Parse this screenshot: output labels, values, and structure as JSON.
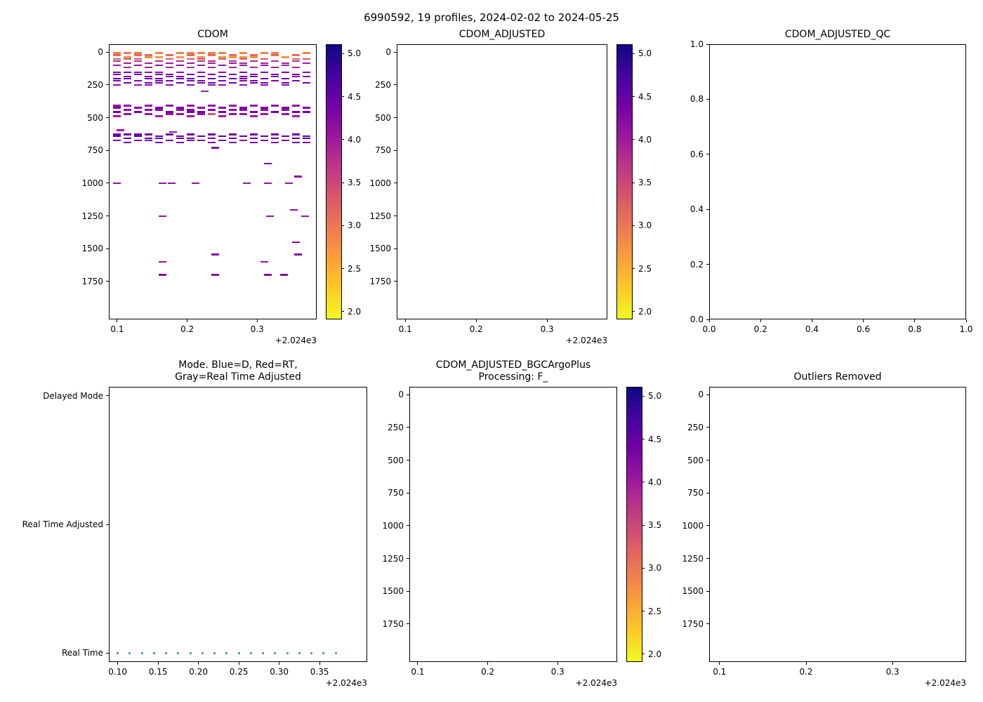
{
  "figure": {
    "suptitle": "6990592, 19 profiles, 2024-02-02 to 2024-05-25",
    "background": "#ffffff"
  },
  "palette": {
    "plasma_stops": [
      "#0d0887",
      "#46039f",
      "#7201a8",
      "#9c179e",
      "#bd3786",
      "#d8576b",
      "#ed7953",
      "#fb9f3a",
      "#fdca26",
      "#f0f921"
    ],
    "mode_dot_color": "#3a87ad",
    "axis_color": "#000000"
  },
  "chart_data": [
    {
      "id": "cdom",
      "type": "scatter",
      "marker_shape": "hline",
      "title": "CDOM",
      "xlim": [
        0.088,
        0.385
      ],
      "ylim": [
        -60,
        2040
      ],
      "xticks": [
        0.1,
        0.2,
        0.3
      ],
      "xtick_labels": [
        "0.1",
        "0.2",
        "0.3"
      ],
      "yticks": [
        0,
        250,
        500,
        750,
        1000,
        1250,
        1500,
        1750
      ],
      "ytick_labels": [
        "0",
        "250",
        "500",
        "750",
        "1000",
        "1250",
        "1500",
        "1750"
      ],
      "x_offset_label": "+2.024e3",
      "colorbar": {
        "vmin": 1.9,
        "vmax": 5.1,
        "ticks": [
          2.0,
          2.5,
          3.0,
          3.5,
          4.0,
          4.5,
          5.0
        ],
        "tick_labels": [
          "2.0",
          "2.5",
          "3.0",
          "3.5",
          "4.0",
          "4.5",
          "5.0"
        ]
      },
      "rows": [
        {
          "depth": 8,
          "value": 2.9,
          "xs": [
            0.1,
            0.115,
            0.13,
            0.16,
            0.19,
            0.205,
            0.22,
            0.235,
            0.25,
            0.28,
            0.31,
            0.325,
            0.37
          ]
        },
        {
          "depth": 22,
          "value": 3.1,
          "xs": [
            0.1,
            0.13,
            0.145,
            0.175,
            0.205,
            0.235,
            0.265,
            0.295,
            0.325,
            0.355
          ]
        },
        {
          "depth": 38,
          "value": 2.7,
          "xs": [
            0.115,
            0.145,
            0.16,
            0.19,
            0.22,
            0.25,
            0.265,
            0.28,
            0.295,
            0.34
          ]
        },
        {
          "depth": 52,
          "value": 3.3,
          "xs": [
            0.1,
            0.115,
            0.13,
            0.175,
            0.205,
            0.22,
            0.25,
            0.28,
            0.31,
            0.355,
            0.37
          ]
        },
        {
          "depth": 68,
          "value": 3.8,
          "xs": [
            0.1,
            0.13,
            0.16,
            0.19,
            0.22,
            0.235,
            0.265,
            0.295,
            0.325,
            0.355
          ]
        },
        {
          "depth": 85,
          "value": 4.0,
          "xs": [
            0.115,
            0.145,
            0.175,
            0.205,
            0.235,
            0.265,
            0.28,
            0.31,
            0.34,
            0.37
          ]
        },
        {
          "depth": 100,
          "value": 4.1,
          "xs": [
            0.1,
            0.13,
            0.16,
            0.19,
            0.22,
            0.25,
            0.28,
            0.31,
            0.34
          ]
        },
        {
          "depth": 118,
          "value": 3.9,
          "xs": [
            0.115,
            0.145,
            0.175,
            0.205,
            0.235,
            0.265,
            0.295,
            0.325,
            0.355
          ]
        },
        {
          "depth": 155,
          "value": 4.2,
          "xs": [
            0.1,
            0.115,
            0.13,
            0.145,
            0.16,
            0.19,
            0.22,
            0.25,
            0.28,
            0.31,
            0.34,
            0.37
          ]
        },
        {
          "depth": 170,
          "value": 4.4,
          "xs": [
            0.1,
            0.13,
            0.16,
            0.175,
            0.205,
            0.235,
            0.265,
            0.295,
            0.325,
            0.355
          ]
        },
        {
          "depth": 186,
          "value": 4.3,
          "xs": [
            0.115,
            0.145,
            0.175,
            0.19,
            0.22,
            0.25,
            0.28,
            0.295,
            0.325,
            0.355,
            0.37
          ]
        },
        {
          "depth": 202,
          "value": 4.5,
          "xs": [
            0.1,
            0.115,
            0.145,
            0.16,
            0.19,
            0.205,
            0.235,
            0.265,
            0.28,
            0.31,
            0.34
          ]
        },
        {
          "depth": 218,
          "value": 4.3,
          "xs": [
            0.1,
            0.13,
            0.16,
            0.175,
            0.205,
            0.22,
            0.25,
            0.28,
            0.295,
            0.325,
            0.355
          ]
        },
        {
          "depth": 234,
          "value": 4.4,
          "xs": [
            0.115,
            0.145,
            0.16,
            0.19,
            0.22,
            0.235,
            0.265,
            0.295,
            0.31,
            0.34,
            0.37
          ]
        },
        {
          "depth": 250,
          "value": 4.2,
          "xs": [
            0.1,
            0.13,
            0.145,
            0.175,
            0.205,
            0.235,
            0.25,
            0.28,
            0.31,
            0.34
          ]
        },
        {
          "depth": 300,
          "value": 4.0,
          "xs": [
            0.225
          ]
        },
        {
          "depth": 410,
          "value": 4.1,
          "xs": [
            0.1,
            0.115,
            0.145,
            0.175,
            0.205,
            0.235,
            0.265,
            0.295,
            0.325,
            0.355
          ]
        },
        {
          "depth": 425,
          "value": 4.3,
          "xs": [
            0.1,
            0.13,
            0.16,
            0.19,
            0.22,
            0.25,
            0.28,
            0.31,
            0.34,
            0.37
          ]
        },
        {
          "depth": 440,
          "value": 4.2,
          "xs": [
            0.115,
            0.145,
            0.16,
            0.19,
            0.205,
            0.235,
            0.265,
            0.28,
            0.31,
            0.34
          ]
        },
        {
          "depth": 456,
          "value": 4.4,
          "xs": [
            0.1,
            0.13,
            0.175,
            0.205,
            0.22,
            0.25,
            0.295,
            0.325,
            0.355,
            0.37
          ]
        },
        {
          "depth": 472,
          "value": 3.3,
          "xs": [
            0.235
          ]
        },
        {
          "depth": 472,
          "value": 4.1,
          "xs": [
            0.115,
            0.145,
            0.175,
            0.19,
            0.22,
            0.265,
            0.28,
            0.31,
            0.34
          ]
        },
        {
          "depth": 488,
          "value": 4.0,
          "xs": [
            0.1,
            0.16,
            0.205,
            0.25,
            0.295,
            0.355
          ]
        },
        {
          "depth": 595,
          "value": 4.0,
          "xs": [
            0.105
          ]
        },
        {
          "depth": 610,
          "value": 4.1,
          "xs": [
            0.18
          ]
        },
        {
          "depth": 628,
          "value": 4.4,
          "xs": [
            0.1,
            0.115,
            0.13,
            0.145,
            0.175,
            0.205,
            0.235,
            0.265,
            0.295,
            0.325,
            0.355
          ]
        },
        {
          "depth": 643,
          "value": 4.6,
          "xs": [
            0.1,
            0.13,
            0.16,
            0.19,
            0.22,
            0.25,
            0.28,
            0.31,
            0.34,
            0.37
          ]
        },
        {
          "depth": 658,
          "value": 4.5,
          "xs": [
            0.115,
            0.145,
            0.16,
            0.19,
            0.205,
            0.235,
            0.265,
            0.295,
            0.325,
            0.355,
            0.37
          ]
        },
        {
          "depth": 674,
          "value": 4.3,
          "xs": [
            0.1,
            0.13,
            0.145,
            0.175,
            0.205,
            0.22,
            0.25,
            0.28,
            0.31,
            0.34
          ]
        },
        {
          "depth": 690,
          "value": 4.4,
          "xs": [
            0.115,
            0.16,
            0.19,
            0.235,
            0.265,
            0.295,
            0.325,
            0.355,
            0.37
          ]
        },
        {
          "depth": 730,
          "value": 4.2,
          "xs": [
            0.24
          ]
        },
        {
          "depth": 852,
          "value": 4.3,
          "xs": [
            0.315
          ]
        },
        {
          "depth": 950,
          "value": 4.2,
          "xs": [
            0.358
          ]
        },
        {
          "depth": 1000,
          "value": 4.1,
          "xs": [
            0.1,
            0.165,
            0.178,
            0.212,
            0.285,
            0.315,
            0.345
          ]
        },
        {
          "depth": 1205,
          "value": 4.2,
          "xs": [
            0.352
          ]
        },
        {
          "depth": 1252,
          "value": 4.1,
          "xs": [
            0.165,
            0.318,
            0.368
          ]
        },
        {
          "depth": 1450,
          "value": 4.2,
          "xs": [
            0.355
          ]
        },
        {
          "depth": 1545,
          "value": 4.2,
          "xs": [
            0.24,
            0.358
          ]
        },
        {
          "depth": 1600,
          "value": 4.1,
          "xs": [
            0.165,
            0.31
          ]
        },
        {
          "depth": 1700,
          "value": 4.2,
          "xs": [
            0.165,
            0.24,
            0.315,
            0.338
          ]
        }
      ]
    },
    {
      "id": "cdom_adjusted",
      "type": "scatter",
      "marker_shape": "hline",
      "title": "CDOM_ADJUSTED",
      "xlim": [
        0.088,
        0.385
      ],
      "ylim": [
        -60,
        2040
      ],
      "xticks": [
        0.1,
        0.2,
        0.3
      ],
      "xtick_labels": [
        "0.1",
        "0.2",
        "0.3"
      ],
      "yticks": [
        0,
        250,
        500,
        750,
        1000,
        1250,
        1500,
        1750
      ],
      "ytick_labels": [
        "0",
        "250",
        "500",
        "750",
        "1000",
        "1250",
        "1500",
        "1750"
      ],
      "x_offset_label": "+2.024e3",
      "colorbar": {
        "vmin": 1.9,
        "vmax": 5.1,
        "ticks": [
          2.0,
          2.5,
          3.0,
          3.5,
          4.0,
          4.5,
          5.0
        ],
        "tick_labels": [
          "2.0",
          "2.5",
          "3.0",
          "3.5",
          "4.0",
          "4.5",
          "5.0"
        ]
      },
      "rows": []
    },
    {
      "id": "cdom_adjusted_qc",
      "type": "scatter",
      "title": "CDOM_ADJUSTED_QC",
      "xlim": [
        0.0,
        1.0
      ],
      "ylim": [
        1.0,
        0.0
      ],
      "xticks": [
        0.0,
        0.2,
        0.4,
        0.6,
        0.8,
        1.0
      ],
      "xtick_labels": [
        "0.0",
        "0.2",
        "0.4",
        "0.6",
        "0.8",
        "1.0"
      ],
      "yticks": [
        1.0,
        0.8,
        0.6,
        0.4,
        0.2,
        0.0
      ],
      "ytick_labels": [
        "1.0",
        "0.8",
        "0.6",
        "0.4",
        "0.2",
        "0.0"
      ],
      "rows": []
    },
    {
      "id": "mode",
      "type": "scatter",
      "marker_shape": "dot",
      "title": "Mode. Blue=D, Red=RT,\nGray=Real Time Adjusted",
      "xlim": [
        0.089,
        0.409
      ],
      "ylim": [
        2.07,
        -0.07
      ],
      "xticks": [
        0.1,
        0.15,
        0.2,
        0.25,
        0.3,
        0.35
      ],
      "xtick_labels": [
        "0.10",
        "0.15",
        "0.20",
        "0.25",
        "0.30",
        "0.35"
      ],
      "yticks": [
        2,
        1,
        0
      ],
      "ytick_labels": [
        "Delayed Mode",
        "Real Time Adjusted",
        "Real Time"
      ],
      "x_offset_label": "+2.024e3",
      "dots": {
        "y": 0,
        "category": "Real Time",
        "xs": [
          0.1,
          0.115,
          0.13,
          0.145,
          0.16,
          0.175,
          0.19,
          0.205,
          0.22,
          0.235,
          0.25,
          0.265,
          0.28,
          0.295,
          0.31,
          0.325,
          0.34,
          0.355,
          0.37
        ]
      }
    },
    {
      "id": "bgc",
      "type": "scatter",
      "marker_shape": "hline",
      "title": "CDOM_ADJUSTED_BGCArgoPlus\nProcessing: F_",
      "xlim": [
        0.088,
        0.385
      ],
      "ylim": [
        -60,
        2040
      ],
      "xticks": [
        0.1,
        0.2,
        0.3
      ],
      "xtick_labels": [
        "0.1",
        "0.2",
        "0.3"
      ],
      "yticks": [
        0,
        250,
        500,
        750,
        1000,
        1250,
        1500,
        1750
      ],
      "ytick_labels": [
        "0",
        "250",
        "500",
        "750",
        "1000",
        "1250",
        "1500",
        "1750"
      ],
      "x_offset_label": "+2.024e3",
      "colorbar": {
        "vmin": 1.9,
        "vmax": 5.1,
        "ticks": [
          2.0,
          2.5,
          3.0,
          3.5,
          4.0,
          4.5,
          5.0
        ],
        "tick_labels": [
          "2.0",
          "2.5",
          "3.0",
          "3.5",
          "4.0",
          "4.5",
          "5.0"
        ]
      },
      "rows": []
    },
    {
      "id": "outliers",
      "type": "scatter",
      "marker_shape": "hline",
      "title": "Outliers Removed",
      "xlim": [
        0.088,
        0.385
      ],
      "ylim": [
        -60,
        2040
      ],
      "xticks": [
        0.1,
        0.2,
        0.3
      ],
      "xtick_labels": [
        "0.1",
        "0.2",
        "0.3"
      ],
      "yticks": [
        0,
        250,
        500,
        750,
        1000,
        1250,
        1500,
        1750
      ],
      "ytick_labels": [
        "0",
        "250",
        "500",
        "750",
        "1000",
        "1250",
        "1500",
        "1750"
      ],
      "x_offset_label": "+2.024e3",
      "rows": []
    }
  ]
}
